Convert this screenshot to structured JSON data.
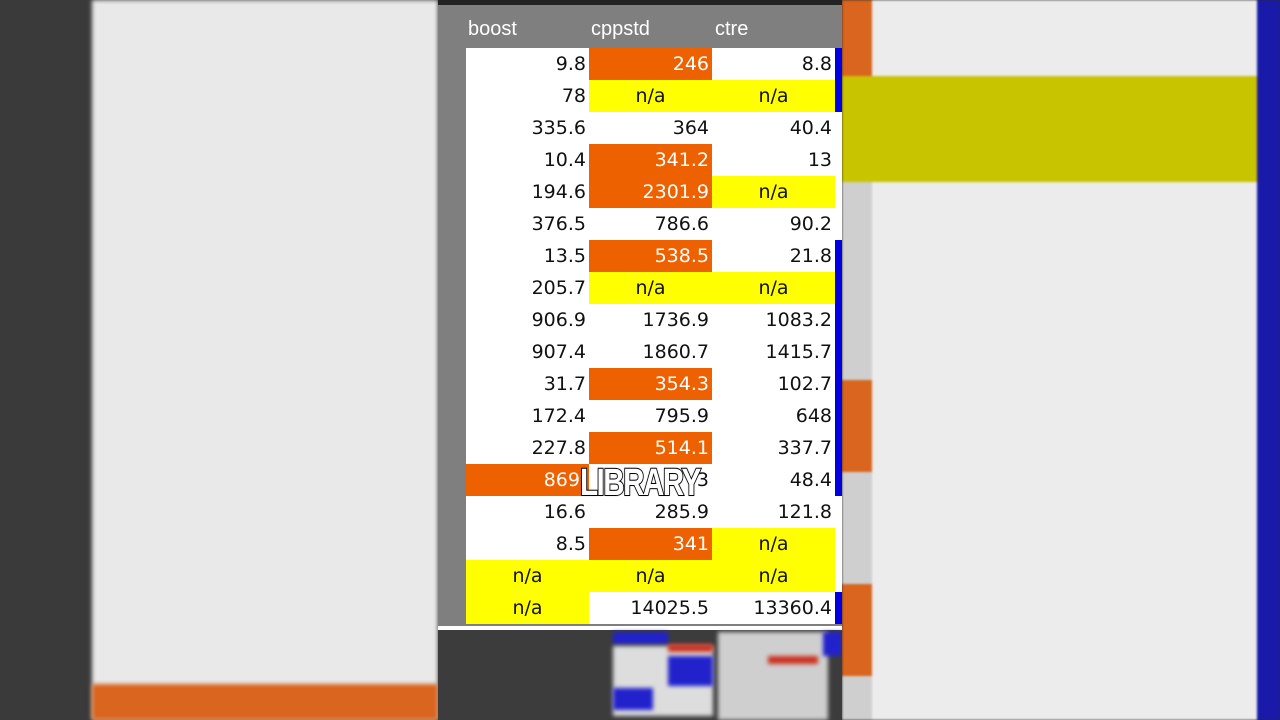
{
  "colors": {
    "orange": "#ee6100",
    "yellow": "#ffff00",
    "blue": "#0000e0",
    "header_bg": "#7f7f7f"
  },
  "table": {
    "headers": [
      "boost",
      "cppstd",
      "ctre"
    ],
    "rows": [
      {
        "cells": [
          "9.8",
          "246",
          "8.8"
        ],
        "styles": [
          "w",
          "o",
          "w"
        ],
        "blue": true
      },
      {
        "cells": [
          "78",
          "n/a",
          "n/a"
        ],
        "styles": [
          "w",
          "y",
          "y"
        ],
        "blue": true
      },
      {
        "cells": [
          "335.6",
          "364",
          "40.4"
        ],
        "styles": [
          "w",
          "w",
          "w"
        ],
        "blue": false
      },
      {
        "cells": [
          "10.4",
          "341.2",
          "13"
        ],
        "styles": [
          "w",
          "o",
          "w"
        ],
        "blue": false
      },
      {
        "cells": [
          "194.6",
          "2301.9",
          "n/a"
        ],
        "styles": [
          "w",
          "o",
          "y"
        ],
        "blue": false
      },
      {
        "cells": [
          "376.5",
          "786.6",
          "90.2"
        ],
        "styles": [
          "w",
          "w",
          "w"
        ],
        "blue": false
      },
      {
        "cells": [
          "13.5",
          "538.5",
          "21.8"
        ],
        "styles": [
          "w",
          "o",
          "w"
        ],
        "blue": true
      },
      {
        "cells": [
          "205.7",
          "n/a",
          "n/a"
        ],
        "styles": [
          "w",
          "y",
          "y"
        ],
        "blue": true
      },
      {
        "cells": [
          "906.9",
          "1736.9",
          "1083.2"
        ],
        "styles": [
          "w",
          "w",
          "w"
        ],
        "blue": true
      },
      {
        "cells": [
          "907.4",
          "1860.7",
          "1415.7"
        ],
        "styles": [
          "w",
          "w",
          "w"
        ],
        "blue": true
      },
      {
        "cells": [
          "31.7",
          "354.3",
          "102.7"
        ],
        "styles": [
          "w",
          "o",
          "w"
        ],
        "blue": true
      },
      {
        "cells": [
          "172.4",
          "795.9",
          "648"
        ],
        "styles": [
          "w",
          "w",
          "w"
        ],
        "blue": true
      },
      {
        "cells": [
          "227.8",
          "514.1",
          "337.7"
        ],
        "styles": [
          "w",
          "o",
          "w"
        ],
        "blue": true
      },
      {
        "cells": [
          "869.",
          "3",
          "48.4"
        ],
        "styles": [
          "o",
          "w",
          "w"
        ],
        "blue": true
      },
      {
        "cells": [
          "16.6",
          "285.9",
          "121.8"
        ],
        "styles": [
          "w",
          "w",
          "w"
        ],
        "blue": false
      },
      {
        "cells": [
          "8.5",
          "341",
          "n/a"
        ],
        "styles": [
          "w",
          "o",
          "y"
        ],
        "blue": false
      },
      {
        "cells": [
          "n/a",
          "n/a",
          "n/a"
        ],
        "styles": [
          "y",
          "y",
          "y"
        ],
        "blue": false
      },
      {
        "cells": [
          "n/a",
          "14025.5",
          "13360.4"
        ],
        "styles": [
          "y",
          "w",
          "w"
        ],
        "blue": true
      }
    ]
  },
  "caption": "LIBRARY"
}
